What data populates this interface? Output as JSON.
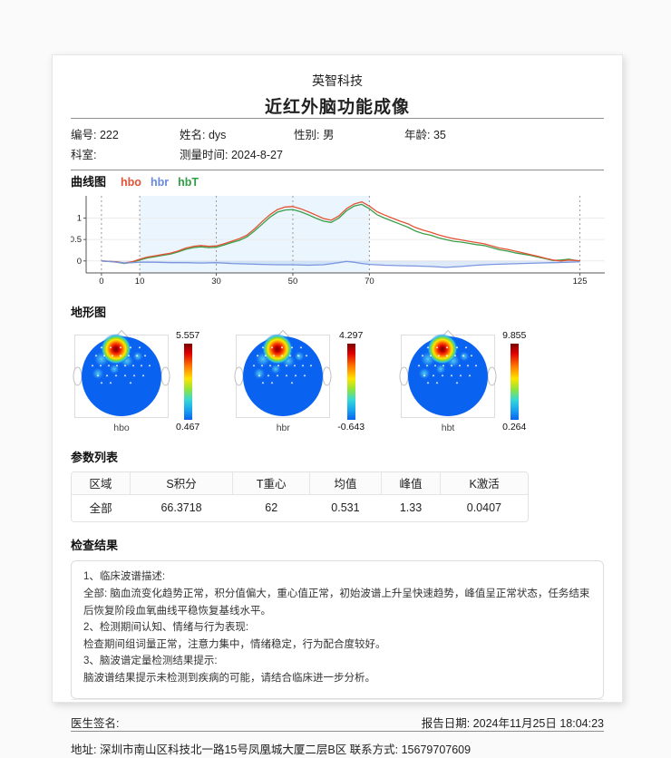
{
  "header": {
    "company": "英智科技",
    "report_title": "近红外脑功能成像"
  },
  "patient": {
    "row1": [
      {
        "label": "编号: ",
        "value": "222"
      },
      {
        "label": "姓名: ",
        "value": "dys"
      },
      {
        "label": "性别: ",
        "value": "男"
      },
      {
        "label": "年龄: ",
        "value": "35"
      }
    ],
    "row2": [
      {
        "label": "科室: ",
        "value": ""
      },
      {
        "label": "测量时间: ",
        "value": "2024-8-27"
      }
    ]
  },
  "chart_data": [
    {
      "type": "line",
      "title": "曲线图",
      "legend": [
        {
          "name": "hbo",
          "color": "#e25234"
        },
        {
          "name": "hbr",
          "color": "#6688dd"
        },
        {
          "name": "hbT",
          "color": "#2f9e44"
        }
      ],
      "xlim": [
        -4,
        131.5
      ],
      "ylim": [
        -0.28,
        1.52
      ],
      "x_ticks": [
        0,
        10,
        30,
        50,
        70,
        125
      ],
      "y_ticks": [
        0,
        0.5,
        1
      ],
      "task_region": [
        10,
        70
      ],
      "grid": true,
      "series": [
        {
          "name": "hbT",
          "color": "#3a9e48",
          "points": [
            [
              0,
              0
            ],
            [
              2,
              -0.01
            ],
            [
              4,
              -0.03
            ],
            [
              6,
              -0.06
            ],
            [
              8,
              -0.03
            ],
            [
              10,
              0.02
            ],
            [
              12,
              0.07
            ],
            [
              14,
              0.1
            ],
            [
              16,
              0.13
            ],
            [
              18,
              0.16
            ],
            [
              20,
              0.21
            ],
            [
              22,
              0.27
            ],
            [
              24,
              0.31
            ],
            [
              26,
              0.33
            ],
            [
              28,
              0.31
            ],
            [
              30,
              0.32
            ],
            [
              32,
              0.37
            ],
            [
              34,
              0.43
            ],
            [
              36,
              0.48
            ],
            [
              38,
              0.56
            ],
            [
              40,
              0.7
            ],
            [
              42,
              0.86
            ],
            [
              44,
              1.02
            ],
            [
              46,
              1.14
            ],
            [
              48,
              1.19
            ],
            [
              50,
              1.2
            ],
            [
              52,
              1.15
            ],
            [
              54,
              1.08
            ],
            [
              56,
              1.0
            ],
            [
              58,
              0.93
            ],
            [
              60,
              0.9
            ],
            [
              62,
              1.0
            ],
            [
              64,
              1.17
            ],
            [
              66,
              1.28
            ],
            [
              68,
              1.32
            ],
            [
              70,
              1.22
            ],
            [
              72,
              1.08
            ],
            [
              74,
              1.0
            ],
            [
              76,
              0.93
            ],
            [
              78,
              0.86
            ],
            [
              80,
              0.79
            ],
            [
              82,
              0.7
            ],
            [
              84,
              0.64
            ],
            [
              86,
              0.6
            ],
            [
              88,
              0.54
            ],
            [
              90,
              0.5
            ],
            [
              92,
              0.46
            ],
            [
              94,
              0.44
            ],
            [
              96,
              0.41
            ],
            [
              98,
              0.38
            ],
            [
              100,
              0.36
            ],
            [
              102,
              0.31
            ],
            [
              104,
              0.26
            ],
            [
              106,
              0.23
            ],
            [
              108,
              0.19
            ],
            [
              110,
              0.16
            ],
            [
              112,
              0.13
            ],
            [
              114,
              0.09
            ],
            [
              116,
              0.05
            ],
            [
              118,
              0.01
            ],
            [
              120,
              0.02
            ],
            [
              122,
              0.04
            ],
            [
              124,
              0.01
            ],
            [
              125,
              0.0
            ]
          ]
        },
        {
          "name": "hbo",
          "color": "#e25234",
          "points": [
            [
              0,
              0
            ],
            [
              2,
              -0.01
            ],
            [
              4,
              -0.02
            ],
            [
              6,
              -0.05
            ],
            [
              8,
              -0.02
            ],
            [
              10,
              0.04
            ],
            [
              12,
              0.09
            ],
            [
              14,
              0.12
            ],
            [
              16,
              0.15
            ],
            [
              18,
              0.18
            ],
            [
              20,
              0.23
            ],
            [
              22,
              0.3
            ],
            [
              24,
              0.34
            ],
            [
              26,
              0.36
            ],
            [
              28,
              0.34
            ],
            [
              30,
              0.35
            ],
            [
              32,
              0.4
            ],
            [
              34,
              0.46
            ],
            [
              36,
              0.52
            ],
            [
              38,
              0.6
            ],
            [
              40,
              0.75
            ],
            [
              42,
              0.92
            ],
            [
              44,
              1.08
            ],
            [
              46,
              1.2
            ],
            [
              48,
              1.26
            ],
            [
              50,
              1.27
            ],
            [
              52,
              1.22
            ],
            [
              54,
              1.15
            ],
            [
              56,
              1.07
            ],
            [
              58,
              0.99
            ],
            [
              60,
              0.95
            ],
            [
              62,
              1.05
            ],
            [
              64,
              1.22
            ],
            [
              66,
              1.33
            ],
            [
              68,
              1.38
            ],
            [
              70,
              1.28
            ],
            [
              72,
              1.15
            ],
            [
              74,
              1.07
            ],
            [
              76,
              1.0
            ],
            [
              78,
              0.93
            ],
            [
              80,
              0.87
            ],
            [
              82,
              0.78
            ],
            [
              84,
              0.72
            ],
            [
              86,
              0.67
            ],
            [
              88,
              0.61
            ],
            [
              90,
              0.56
            ],
            [
              92,
              0.52
            ],
            [
              94,
              0.49
            ],
            [
              96,
              0.46
            ],
            [
              98,
              0.43
            ],
            [
              100,
              0.4
            ],
            [
              102,
              0.35
            ],
            [
              104,
              0.3
            ],
            [
              106,
              0.27
            ],
            [
              108,
              0.23
            ],
            [
              110,
              0.19
            ],
            [
              112,
              0.15
            ],
            [
              114,
              0.11
            ],
            [
              116,
              0.06
            ],
            [
              118,
              0.02
            ],
            [
              120,
              0.0
            ],
            [
              122,
              0.02
            ],
            [
              124,
              0.01
            ],
            [
              125,
              0.0
            ]
          ]
        },
        {
          "name": "hbr",
          "color": "#7b96e0",
          "fill": true,
          "points": [
            [
              0,
              0
            ],
            [
              2,
              -0.01
            ],
            [
              4,
              -0.03
            ],
            [
              6,
              -0.05
            ],
            [
              8,
              -0.04
            ],
            [
              10,
              -0.03
            ],
            [
              14,
              -0.03
            ],
            [
              18,
              -0.04
            ],
            [
              22,
              -0.04
            ],
            [
              26,
              -0.05
            ],
            [
              30,
              -0.04
            ],
            [
              34,
              -0.06
            ],
            [
              38,
              -0.07
            ],
            [
              42,
              -0.08
            ],
            [
              46,
              -0.09
            ],
            [
              50,
              -0.09
            ],
            [
              54,
              -0.1
            ],
            [
              58,
              -0.09
            ],
            [
              62,
              -0.04
            ],
            [
              64,
              -0.01
            ],
            [
              66,
              -0.03
            ],
            [
              68,
              -0.06
            ],
            [
              70,
              -0.08
            ],
            [
              74,
              -0.1
            ],
            [
              78,
              -0.11
            ],
            [
              82,
              -0.12
            ],
            [
              86,
              -0.13
            ],
            [
              90,
              -0.15
            ],
            [
              94,
              -0.13
            ],
            [
              98,
              -0.1
            ],
            [
              102,
              -0.08
            ],
            [
              106,
              -0.07
            ],
            [
              110,
              -0.06
            ],
            [
              114,
              -0.05
            ],
            [
              118,
              -0.04
            ],
            [
              122,
              -0.03
            ],
            [
              125,
              -0.02
            ]
          ]
        }
      ]
    },
    {
      "type": "heatmap",
      "title": "地形图",
      "maps": [
        {
          "label": "hbo",
          "max": "5.557",
          "min": "0.467"
        },
        {
          "label": "hbr",
          "max": "4.297",
          "min": "-0.643"
        },
        {
          "label": "hbt",
          "max": "9.855",
          "min": "0.264"
        }
      ]
    }
  ],
  "parameters": {
    "title": "参数列表",
    "headers": [
      "区域",
      "S积分",
      "T重心",
      "均值",
      "峰值",
      "K激活"
    ],
    "rows": [
      [
        "全部",
        "66.3718",
        "62",
        "0.531",
        "1.33",
        "0.0407"
      ]
    ]
  },
  "results": {
    "title": "检查结果",
    "lines": [
      "1、临床波谱描述:",
      "全部: 脑血流变化趋势正常，积分值偏大，重心值正常，初始波谱上升呈快速趋势，峰值呈正常状态，任务结束后恢复阶段血氧曲线平稳恢复基线水平。",
      "2、检测期间认知、情绪与行为表现:",
      "检查期间组词量正常，注意力集中，情绪稳定，行为配合度较好。",
      "3、脑波谱定量检测结果提示:",
      "脑波谱结果提示未检测到疾病的可能，请结合临床进一步分析。"
    ]
  },
  "footer": {
    "doctor_label": "医生签名:",
    "report_date_label": "报告日期: ",
    "report_date": "2024年11月25日 18:04:23",
    "address": "地址: 深圳市南山区科技北一路15号凤凰城大厦二层B区  联系方式: 15679707609"
  }
}
